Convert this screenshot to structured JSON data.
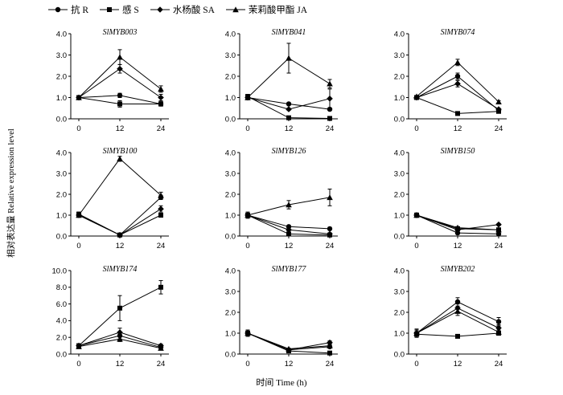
{
  "legend": [
    {
      "label": "抗 R",
      "marker": "circle"
    },
    {
      "label": "感 S",
      "marker": "square"
    },
    {
      "label": "水杨酸 SA",
      "marker": "diamond"
    },
    {
      "label": "茉莉酸甲酯 JA",
      "marker": "triangle"
    }
  ],
  "ylabel": "相对表达量 Relative expression level",
  "xlabel": "时间 Time (h)",
  "chart_data": [
    {
      "type": "line",
      "title": "SlMYB003",
      "x": [
        0,
        12,
        24
      ],
      "xticks": [
        "0",
        "12",
        "24"
      ],
      "ylim": [
        0,
        4
      ],
      "yticks": [
        "0.0",
        "1.0",
        "2.0",
        "3.0",
        "4.0"
      ],
      "series": [
        {
          "name": "抗 R",
          "values": [
            1.0,
            1.1,
            0.7
          ],
          "err": [
            0.05,
            0.1,
            0.1
          ]
        },
        {
          "name": "感 S",
          "values": [
            1.0,
            0.7,
            0.7
          ],
          "err": [
            0.05,
            0.15,
            0.1
          ]
        },
        {
          "name": "水杨酸 SA",
          "values": [
            1.0,
            2.35,
            1.0
          ],
          "err": [
            0.05,
            0.2,
            0.15
          ]
        },
        {
          "name": "茉莉酸甲酯 JA",
          "values": [
            1.0,
            2.9,
            1.4
          ],
          "err": [
            0.05,
            0.35,
            0.15
          ]
        }
      ]
    },
    {
      "type": "line",
      "title": "SlMYB041",
      "x": [
        0,
        12,
        24
      ],
      "xticks": [
        "0",
        "12",
        "24"
      ],
      "ylim": [
        0,
        4
      ],
      "yticks": [
        "0.0",
        "1.0",
        "2.0",
        "3.0",
        "4.0"
      ],
      "series": [
        {
          "name": "抗 R",
          "values": [
            1.0,
            0.7,
            0.45
          ],
          "err": [
            0.05,
            0.05,
            0.05
          ]
        },
        {
          "name": "感 S",
          "values": [
            1.05,
            0.05,
            0.02
          ],
          "err": [
            0.1,
            0.02,
            0.02
          ]
        },
        {
          "name": "水杨酸 SA",
          "values": [
            1.0,
            0.45,
            0.95
          ],
          "err": [
            0.1,
            0.05,
            0.45
          ]
        },
        {
          "name": "茉莉酸甲酯 JA",
          "values": [
            1.0,
            2.85,
            1.65
          ],
          "err": [
            0.1,
            0.7,
            0.2
          ]
        }
      ]
    },
    {
      "type": "line",
      "title": "SlMYB074",
      "x": [
        0,
        12,
        24
      ],
      "xticks": [
        "0",
        "12",
        "24"
      ],
      "ylim": [
        0,
        4
      ],
      "yticks": [
        "0.0",
        "1.0",
        "2.0",
        "3.0",
        "4.0"
      ],
      "series": [
        {
          "name": "抗 R",
          "values": [
            1.0,
            2.0,
            0.4
          ],
          "err": [
            0.05,
            0.15,
            0.05
          ]
        },
        {
          "name": "感 S",
          "values": [
            1.0,
            0.25,
            0.35
          ],
          "err": [
            0.05,
            0.03,
            0.05
          ]
        },
        {
          "name": "水杨酸 SA",
          "values": [
            1.0,
            1.65,
            0.45
          ],
          "err": [
            0.05,
            0.15,
            0.05
          ]
        },
        {
          "name": "茉莉酸甲酯 JA",
          "values": [
            1.05,
            2.65,
            0.8
          ],
          "err": [
            0.05,
            0.15,
            0.05
          ]
        }
      ]
    },
    {
      "type": "line",
      "title": "SlMYB100",
      "x": [
        0,
        12,
        24
      ],
      "xticks": [
        "0",
        "12",
        "24"
      ],
      "ylim": [
        0,
        4
      ],
      "yticks": [
        "0.0",
        "1.0",
        "2.0",
        "3.0",
        "4.0"
      ],
      "series": [
        {
          "name": "抗 R",
          "values": [
            1.0,
            0.05,
            1.85
          ],
          "err": [
            0.1,
            0.02,
            0.1
          ]
        },
        {
          "name": "感 S",
          "values": [
            1.05,
            0.05,
            1.0
          ],
          "err": [
            0.1,
            0.02,
            0.1
          ]
        },
        {
          "name": "水杨酸 SA",
          "values": [
            1.0,
            0.05,
            1.3
          ],
          "err": [
            0.1,
            0.02,
            0.15
          ]
        },
        {
          "name": "茉莉酸甲酯 JA",
          "values": [
            1.0,
            3.7,
            1.95
          ],
          "err": [
            0.1,
            0.12,
            0.15
          ]
        }
      ]
    },
    {
      "type": "line",
      "title": "SlMYB126",
      "x": [
        0,
        12,
        24
      ],
      "xticks": [
        "0",
        "12",
        "24"
      ],
      "ylim": [
        0,
        4
      ],
      "yticks": [
        "0.0",
        "1.0",
        "2.0",
        "3.0",
        "4.0"
      ],
      "series": [
        {
          "name": "抗 R",
          "values": [
            1.0,
            0.45,
            0.35
          ],
          "err": [
            0.1,
            0.05,
            0.03
          ]
        },
        {
          "name": "感 S",
          "values": [
            1.0,
            0.1,
            0.05
          ],
          "err": [
            0.1,
            0.02,
            0.02
          ]
        },
        {
          "name": "水杨酸 SA",
          "values": [
            1.0,
            0.3,
            0.1
          ],
          "err": [
            0.1,
            0.05,
            0.02
          ]
        },
        {
          "name": "茉莉酸甲酯 JA",
          "values": [
            1.0,
            1.5,
            1.85
          ],
          "err": [
            0.15,
            0.2,
            0.4
          ]
        }
      ]
    },
    {
      "type": "line",
      "title": "SlMYB150",
      "x": [
        0,
        12,
        24
      ],
      "xticks": [
        "0",
        "12",
        "24"
      ],
      "ylim": [
        0,
        4
      ],
      "yticks": [
        "0.0",
        "1.0",
        "2.0",
        "3.0",
        "4.0"
      ],
      "series": [
        {
          "name": "抗 R",
          "values": [
            1.0,
            0.15,
            0.1
          ],
          "err": [
            0.1,
            0.03,
            0.02
          ]
        },
        {
          "name": "感 S",
          "values": [
            1.0,
            0.35,
            0.3
          ],
          "err": [
            0.1,
            0.05,
            0.05
          ]
        },
        {
          "name": "水杨酸 SA",
          "values": [
            1.0,
            0.3,
            0.55
          ],
          "err": [
            0.1,
            0.05,
            0.05
          ]
        },
        {
          "name": "茉莉酸甲酯 JA",
          "values": [
            1.0,
            0.4,
            0.3
          ],
          "err": [
            0.1,
            0.05,
            0.05
          ]
        }
      ]
    },
    {
      "type": "line",
      "title": "SlMYB174",
      "x": [
        0,
        12,
        24
      ],
      "xticks": [
        "0",
        "12",
        "24"
      ],
      "ylim": [
        0,
        10
      ],
      "yticks": [
        "0.0",
        "2.0",
        "4.0",
        "6.0",
        "8.0",
        "10.0"
      ],
      "series": [
        {
          "name": "抗 R",
          "values": [
            1.0,
            2.2,
            0.8
          ],
          "err": [
            0.2,
            0.4,
            0.2
          ]
        },
        {
          "name": "感 S",
          "values": [
            1.0,
            5.5,
            8.0
          ],
          "err": [
            0.2,
            1.5,
            0.8
          ]
        },
        {
          "name": "水杨酸 SA",
          "values": [
            1.0,
            2.6,
            1.0
          ],
          "err": [
            0.2,
            0.5,
            0.2
          ]
        },
        {
          "name": "茉莉酸甲酯 JA",
          "values": [
            0.9,
            1.8,
            0.7
          ],
          "err": [
            0.2,
            0.3,
            0.15
          ]
        }
      ]
    },
    {
      "type": "line",
      "title": "SlMYB177",
      "x": [
        0,
        12,
        24
      ],
      "xticks": [
        "0",
        "12",
        "24"
      ],
      "ylim": [
        0,
        4
      ],
      "yticks": [
        "0.0",
        "1.0",
        "2.0",
        "3.0",
        "4.0"
      ],
      "series": [
        {
          "name": "抗 R",
          "values": [
            1.0,
            0.2,
            0.35
          ],
          "err": [
            0.15,
            0.03,
            0.05
          ]
        },
        {
          "name": "感 S",
          "values": [
            1.0,
            0.15,
            0.05
          ],
          "err": [
            0.15,
            0.03,
            0.02
          ]
        },
        {
          "name": "水杨酸 SA",
          "values": [
            1.0,
            0.2,
            0.55
          ],
          "err": [
            0.15,
            0.03,
            0.08
          ]
        },
        {
          "name": "茉莉酸甲酯 JA",
          "values": [
            1.0,
            0.25,
            0.4
          ],
          "err": [
            0.15,
            0.03,
            0.05
          ]
        }
      ]
    },
    {
      "type": "line",
      "title": "SlMYB202",
      "x": [
        0,
        12,
        24
      ],
      "xticks": [
        "0",
        "12",
        "24"
      ],
      "ylim": [
        0,
        4
      ],
      "yticks": [
        "0.0",
        "1.0",
        "2.0",
        "3.0",
        "4.0"
      ],
      "series": [
        {
          "name": "抗 R",
          "values": [
            1.0,
            2.5,
            1.55
          ],
          "err": [
            0.2,
            0.2,
            0.2
          ]
        },
        {
          "name": "感 S",
          "values": [
            0.95,
            0.85,
            1.0
          ],
          "err": [
            0.1,
            0.08,
            0.1
          ]
        },
        {
          "name": "水杨酸 SA",
          "values": [
            1.0,
            2.2,
            1.25
          ],
          "err": [
            0.15,
            0.2,
            0.15
          ]
        },
        {
          "name": "茉莉酸甲酯 JA",
          "values": [
            1.0,
            2.05,
            1.05
          ],
          "err": [
            0.15,
            0.2,
            0.1
          ]
        }
      ]
    }
  ]
}
